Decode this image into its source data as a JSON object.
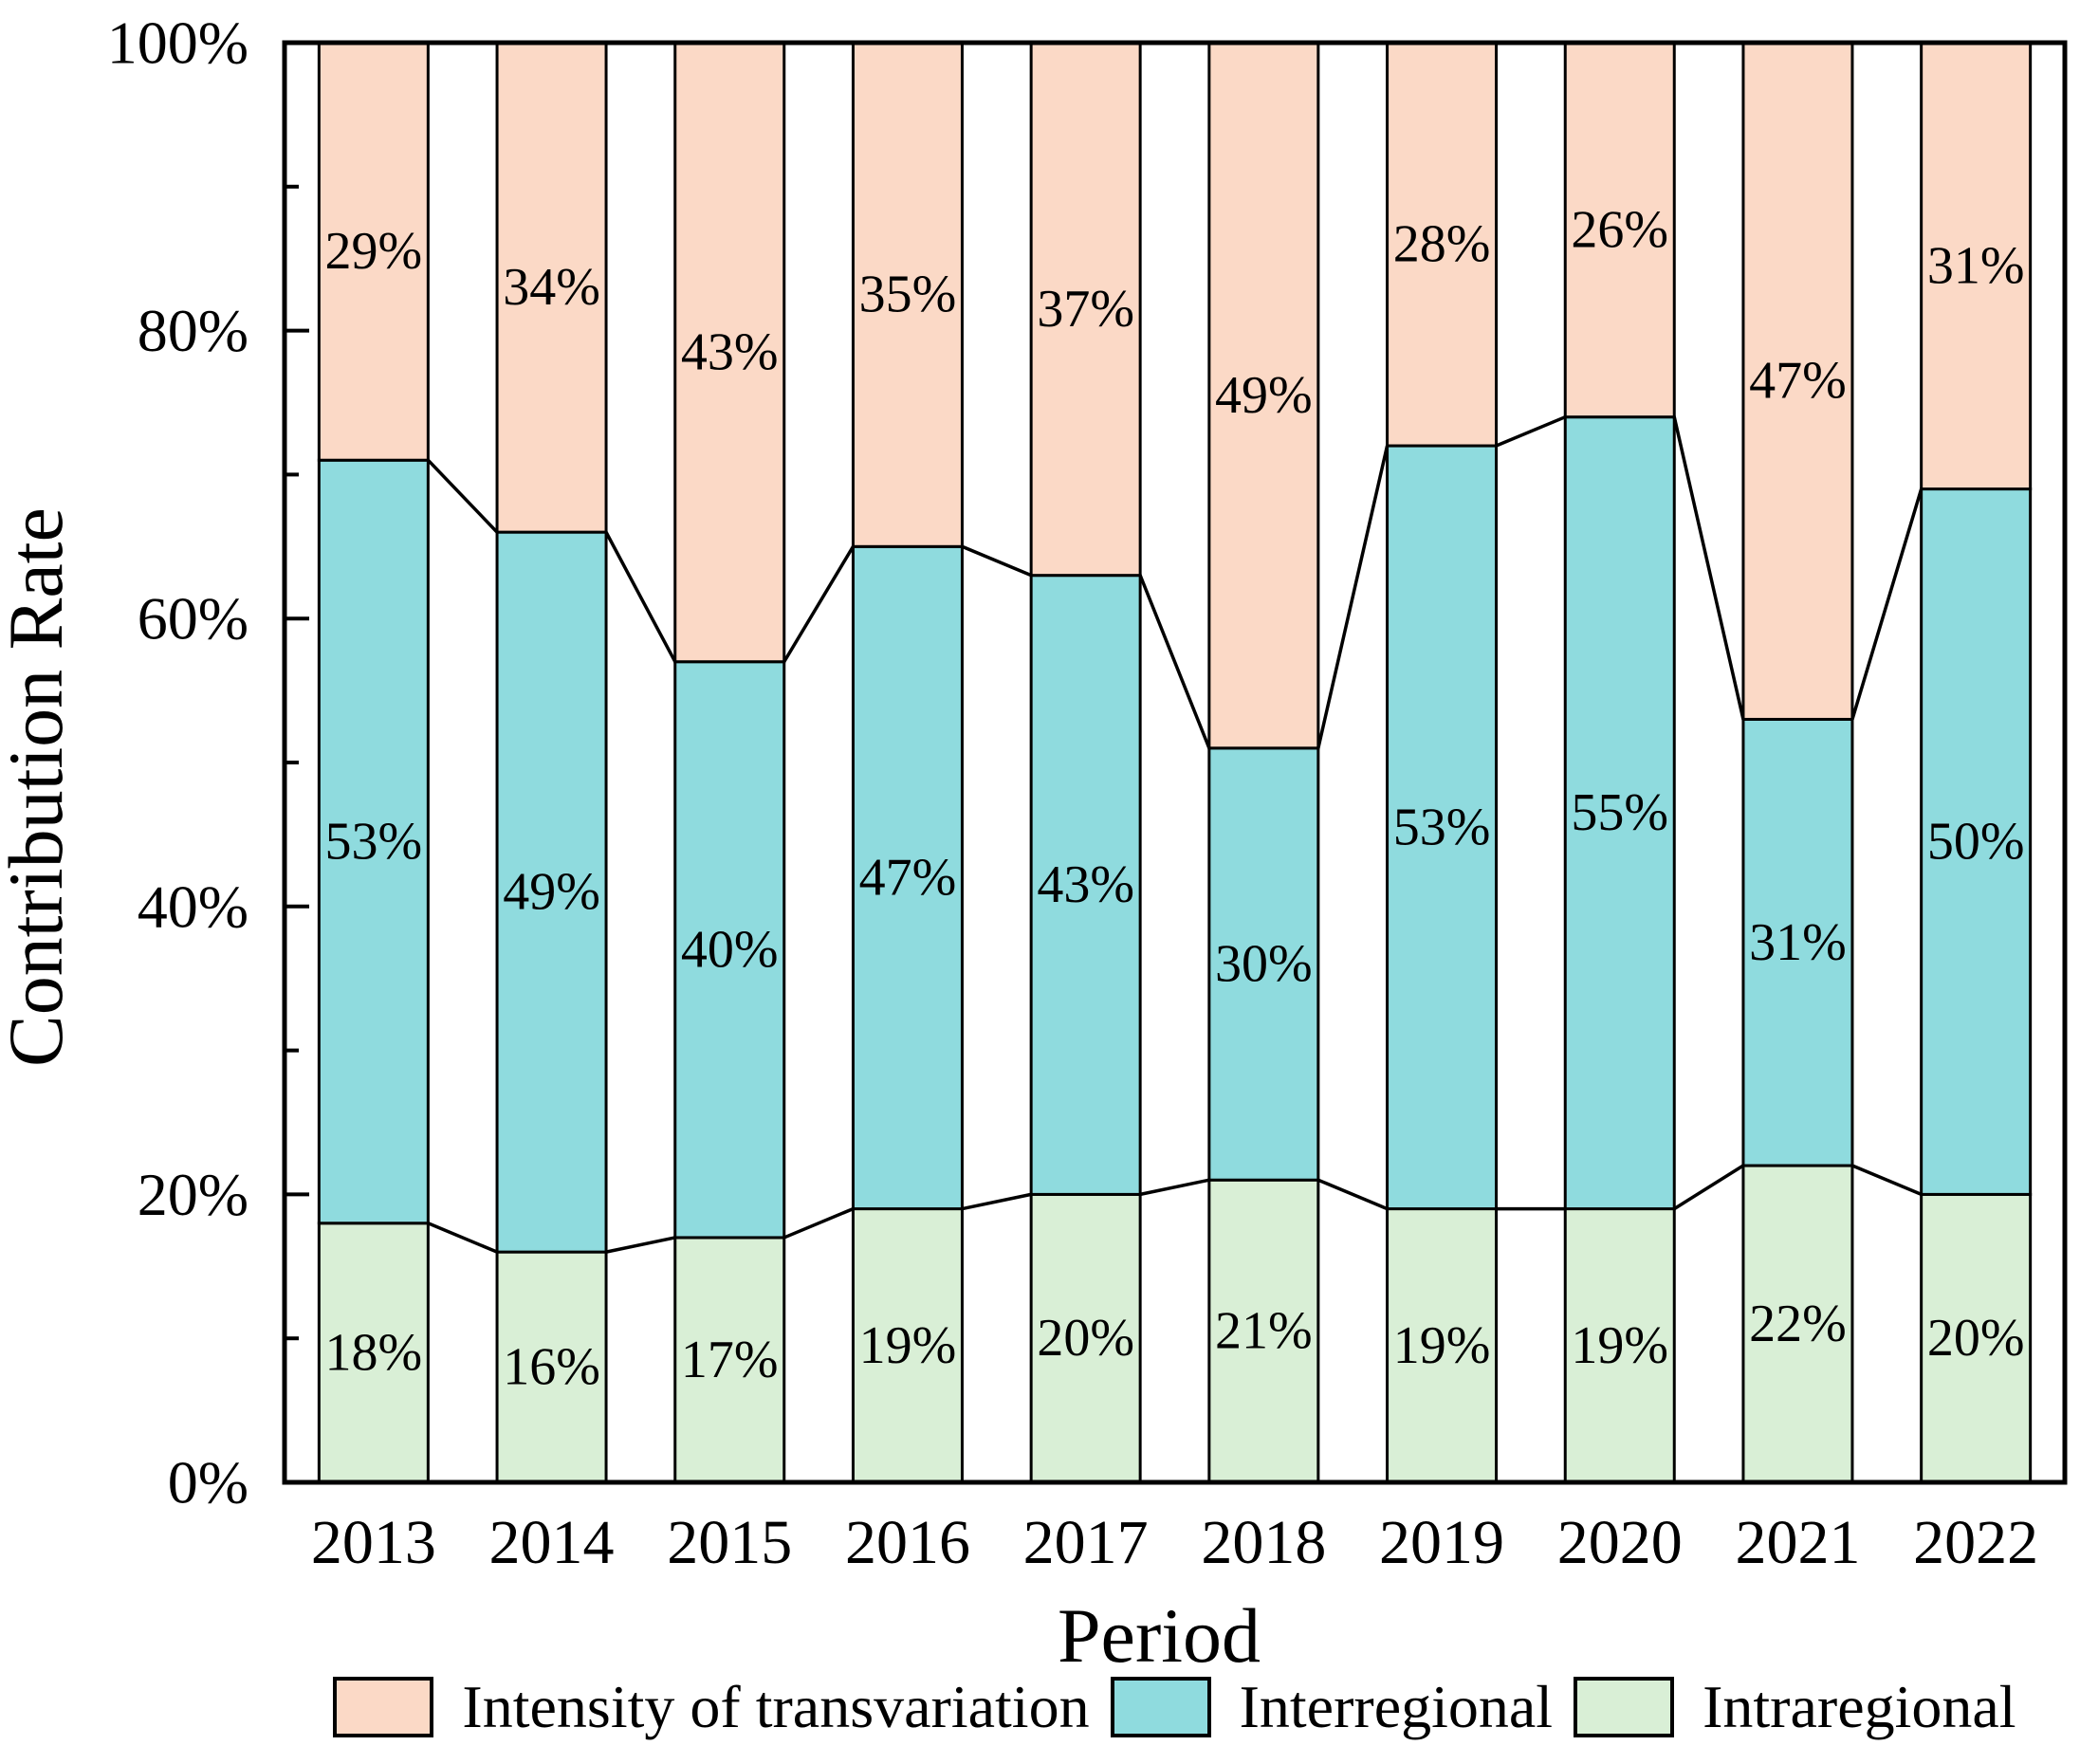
{
  "chart_data": {
    "type": "bar",
    "stacked": true,
    "title": "",
    "xlabel": "Period",
    "ylabel": "Contribution Rate",
    "categories": [
      "2013",
      "2014",
      "2015",
      "2016",
      "2017",
      "2018",
      "2019",
      "2020",
      "2021",
      "2022"
    ],
    "series": [
      {
        "name": "Intraregional",
        "color": "#d9efd6",
        "values": [
          18,
          16,
          17,
          19,
          20,
          21,
          19,
          19,
          22,
          20
        ],
        "labels": [
          "18%",
          "16%",
          "17%",
          "19%",
          "20%",
          "21%",
          "19%",
          "19%",
          "22%",
          "20%"
        ]
      },
      {
        "name": "Interregional",
        "color": "#8fdbde",
        "values": [
          53,
          49,
          40,
          47,
          43,
          30,
          53,
          55,
          31,
          50
        ],
        "labels": [
          "53%",
          "49%",
          "40%",
          "47%",
          "43%",
          "30%",
          "53%",
          "55%",
          "31%",
          "50%"
        ]
      },
      {
        "name": "Intensity of transvariation",
        "color": "#fbd9c6",
        "values": [
          29,
          34,
          43,
          35,
          37,
          49,
          28,
          26,
          47,
          31
        ],
        "labels": [
          "29%",
          "34%",
          "43%",
          "35%",
          "37%",
          "49%",
          "28%",
          "26%",
          "47%",
          "31%"
        ]
      }
    ],
    "y_axis": {
      "range": [
        0,
        100
      ],
      "major_ticks": [
        {
          "value": 0,
          "label": "0%"
        },
        {
          "value": 20,
          "label": "20%"
        },
        {
          "value": 40,
          "label": "40%"
        },
        {
          "value": 60,
          "label": "60%"
        },
        {
          "value": 80,
          "label": "80%"
        },
        {
          "value": 100,
          "label": "100%"
        }
      ],
      "minor_ticks": [
        10,
        30,
        50,
        70,
        90
      ]
    },
    "x_axis": {
      "tick_labels": [
        "2013",
        "2014",
        "2015",
        "2016",
        "2017",
        "2018",
        "2019",
        "2020",
        "2021",
        "2022"
      ]
    },
    "legend": {
      "position": "bottom",
      "items": [
        {
          "label": "Intensity of transvariation",
          "color": "#fbd9c6"
        },
        {
          "label": "Interregional",
          "color": "#8fdbde"
        },
        {
          "label": "Intraregional",
          "color": "#d9efd6"
        }
      ]
    },
    "styles": {
      "bar_edge_color": "#000000",
      "connector_color": "#000000",
      "axis_color": "#000000",
      "background": "#ffffff",
      "grid": "off"
    }
  }
}
